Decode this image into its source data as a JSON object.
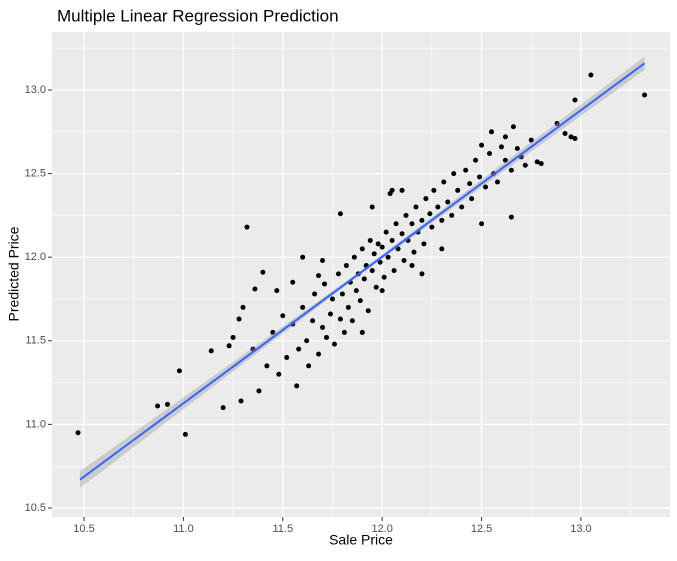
{
  "chart_data": {
    "type": "scatter",
    "title": "Multiple Linear Regression Prediction",
    "x_label": "Sale Price",
    "y_label": "Predicted Price",
    "color": "#000000",
    "panel_color": "#EBEBEB",
    "grid": true,
    "xlim": [
      10.339,
      13.448
    ],
    "ylim": [
      10.446,
      13.347
    ],
    "xticks": [
      10.5,
      {
        "value": 11,
        "label": "11.0"
      },
      11.5,
      {
        "value": 12,
        "label": "12.0"
      },
      12.5,
      {
        "value": 13,
        "label": "13.0"
      }
    ],
    "yticks": [
      10.5,
      {
        "value": 11,
        "label": "11.0"
      },
      11.5,
      {
        "value": 12,
        "label": "12.0"
      },
      12.5,
      {
        "value": 13,
        "label": "13.0"
      }
    ],
    "x_minor_ticks": [
      10.75,
      11.25,
      11.75,
      12.25,
      12.75,
      13.25
    ],
    "y_minor_ticks": [
      10.75,
      11.25,
      11.75,
      12.25,
      12.75,
      13.25
    ],
    "x": [
      10.47,
      11.01,
      10.98,
      10.87,
      10.92,
      11.14,
      11.2,
      11.23,
      11.29,
      11.32,
      13.32,
      13.05,
      12.97,
      12.97,
      12.95,
      12.78,
      12.8,
      12.65,
      11.79,
      11.3,
      11.36,
      11.4,
      11.28,
      11.25,
      11.7,
      11.68,
      12.05,
      12.04,
      12.92,
      12.88,
      12.5,
      12.55,
      12.66,
      12.62,
      11.35,
      11.38,
      11.42,
      11.45,
      11.48,
      11.5,
      11.52,
      11.55,
      11.57,
      11.58,
      11.6,
      11.62,
      11.63,
      11.65,
      11.66,
      11.68,
      11.7,
      11.71,
      11.72,
      11.74,
      11.75,
      11.76,
      11.78,
      11.79,
      11.8,
      11.81,
      11.82,
      11.83,
      11.84,
      11.85,
      11.86,
      11.87,
      11.88,
      11.89,
      11.9,
      11.91,
      11.92,
      11.93,
      11.94,
      11.95,
      11.96,
      11.97,
      11.98,
      11.99,
      12.0,
      12.01,
      12.02,
      12.03,
      12.05,
      12.06,
      12.07,
      12.08,
      12.1,
      12.11,
      12.12,
      12.13,
      12.15,
      12.16,
      12.17,
      12.18,
      12.2,
      12.21,
      12.22,
      12.24,
      12.25,
      12.26,
      12.28,
      12.3,
      12.31,
      12.33,
      12.35,
      12.36,
      12.38,
      12.4,
      12.42,
      12.44,
      12.45,
      12.47,
      12.49,
      12.52,
      12.54,
      12.56,
      12.58,
      12.6,
      12.62,
      12.65,
      12.68,
      12.7,
      12.72,
      12.75,
      11.9,
      12.0,
      12.15,
      12.3,
      11.55,
      11.6,
      11.47,
      11.95,
      12.1,
      12.5,
      12.2
    ],
    "y": [
      10.95,
      10.94,
      11.32,
      11.11,
      11.12,
      11.44,
      11.1,
      11.47,
      11.14,
      12.18,
      12.97,
      13.09,
      12.94,
      12.71,
      12.72,
      12.57,
      12.56,
      12.24,
      12.26,
      11.7,
      11.81,
      11.91,
      11.63,
      11.52,
      11.98,
      11.89,
      12.4,
      12.38,
      12.74,
      12.8,
      12.67,
      12.75,
      12.78,
      12.72,
      11.45,
      11.2,
      11.35,
      11.55,
      11.3,
      11.65,
      11.4,
      11.6,
      11.23,
      11.45,
      11.7,
      11.5,
      11.35,
      11.62,
      11.78,
      11.42,
      11.58,
      11.84,
      11.52,
      11.66,
      11.75,
      11.48,
      11.9,
      11.63,
      11.78,
      11.55,
      11.95,
      11.7,
      11.85,
      11.62,
      12.0,
      11.8,
      11.9,
      11.74,
      12.05,
      11.87,
      11.95,
      11.68,
      12.1,
      11.92,
      12.02,
      11.82,
      12.08,
      11.97,
      12.06,
      11.88,
      12.15,
      12.0,
      12.1,
      11.92,
      12.2,
      12.05,
      12.14,
      11.98,
      12.25,
      12.1,
      12.2,
      12.03,
      12.3,
      12.15,
      12.22,
      12.08,
      12.35,
      12.26,
      12.18,
      12.4,
      12.3,
      12.22,
      12.45,
      12.33,
      12.25,
      12.5,
      12.4,
      12.3,
      12.52,
      12.44,
      12.35,
      12.58,
      12.48,
      12.42,
      12.62,
      12.5,
      12.45,
      12.66,
      12.58,
      12.52,
      12.65,
      12.6,
      12.55,
      12.7,
      11.55,
      11.8,
      11.95,
      12.05,
      11.85,
      12.0,
      11.8,
      12.3,
      12.4,
      12.2,
      11.9
    ],
    "fit": {
      "type": "line",
      "color": "#3366FF",
      "x": [
        10.48,
        13.32
      ],
      "y": [
        10.67,
        13.16
      ]
    },
    "ribbon": {
      "type": "area",
      "color": "#999999",
      "x": [
        10.48,
        11.9,
        13.32
      ],
      "lower": [
        10.62,
        11.905,
        13.12
      ],
      "upper": [
        10.72,
        11.925,
        13.2
      ]
    }
  }
}
